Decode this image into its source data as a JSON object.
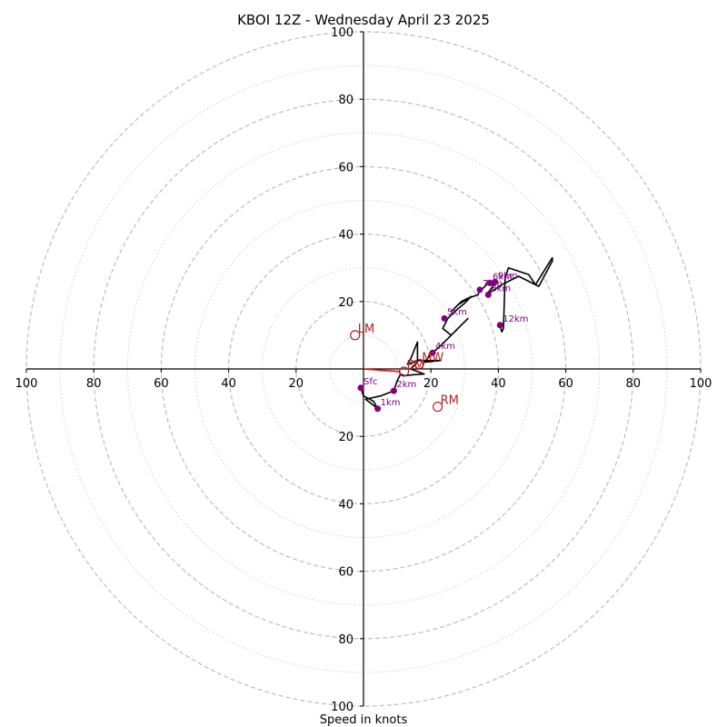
{
  "chart_data": {
    "type": "hodograph",
    "title": "KBOI 12Z - Wednesday April 23 2025",
    "xlabel": "Speed in knots",
    "range": [
      -100,
      100
    ],
    "major_rings": [
      20,
      40,
      60,
      80,
      100
    ],
    "minor_rings": [
      10,
      30,
      50,
      70,
      90
    ],
    "x_tick_labels": [
      {
        "value": -100,
        "label": "100"
      },
      {
        "value": -80,
        "label": "80"
      },
      {
        "value": -60,
        "label": "60"
      },
      {
        "value": -40,
        "label": "40"
      },
      {
        "value": -20,
        "label": "20"
      },
      {
        "value": 20,
        "label": "20"
      },
      {
        "value": 40,
        "label": "40"
      },
      {
        "value": 60,
        "label": "60"
      },
      {
        "value": 80,
        "label": "80"
      },
      {
        "value": 100,
        "label": "100"
      }
    ],
    "y_tick_labels": [
      {
        "value": 100,
        "label": "100"
      },
      {
        "value": 80,
        "label": "80"
      },
      {
        "value": 60,
        "label": "60"
      },
      {
        "value": 40,
        "label": "40"
      },
      {
        "value": 20,
        "label": "20"
      },
      {
        "value": -20,
        "label": "20"
      },
      {
        "value": -40,
        "label": "40"
      },
      {
        "value": -60,
        "label": "60"
      },
      {
        "value": -80,
        "label": "80"
      },
      {
        "value": -100,
        "label": "100"
      }
    ],
    "colors": {
      "hodograph": "#000000",
      "height_markers": "#800080",
      "storm_motion": "#b22222",
      "mean_wind_vector": "#ff0000"
    },
    "hodograph_trace": [
      [
        -0.8,
        -5.6
      ],
      [
        0,
        -8
      ],
      [
        3,
        -9.6
      ],
      [
        4.2,
        -11.8
      ],
      [
        2,
        -10
      ],
      [
        0.6,
        -9
      ],
      [
        5,
        -8
      ],
      [
        9,
        -6.5
      ],
      [
        10,
        -3.5
      ],
      [
        11,
        -1.5
      ],
      [
        12,
        -2
      ],
      [
        15,
        -1.7
      ],
      [
        18,
        -1.5
      ],
      [
        14,
        0
      ],
      [
        16,
        2
      ],
      [
        16,
        8
      ],
      [
        14,
        3
      ],
      [
        13,
        1.4
      ],
      [
        16,
        2.5
      ],
      [
        23,
        2.5
      ],
      [
        18,
        2
      ],
      [
        20.5,
        4.8
      ],
      [
        23,
        7
      ],
      [
        25,
        9
      ],
      [
        31,
        15
      ],
      [
        26,
        10
      ],
      [
        23.5,
        12
      ],
      [
        25,
        15
      ],
      [
        27,
        17
      ],
      [
        30,
        19.5
      ],
      [
        32,
        21.5
      ],
      [
        28,
        19
      ],
      [
        26,
        17
      ],
      [
        29,
        20
      ],
      [
        31,
        21
      ],
      [
        34,
        22
      ],
      [
        34.5,
        24
      ],
      [
        35,
        23.5
      ],
      [
        37,
        25.5
      ],
      [
        38,
        25
      ],
      [
        39.5,
        26
      ],
      [
        36.5,
        22
      ],
      [
        41,
        25
      ],
      [
        46,
        27.5
      ],
      [
        52,
        24.5
      ],
      [
        56,
        32
      ],
      [
        56,
        33
      ],
      [
        51,
        25
      ],
      [
        49,
        28
      ],
      [
        43,
        30
      ],
      [
        42,
        27
      ],
      [
        41.5,
        12
      ],
      [
        41,
        11
      ],
      [
        40.5,
        13
      ]
    ],
    "height_markers": [
      {
        "label": "Sfc",
        "u": -0.8,
        "v": -5.6
      },
      {
        "label": "1km",
        "u": 4.2,
        "v": -11.8
      },
      {
        "label": "2km",
        "u": 9,
        "v": -6.5
      },
      {
        "label": "4km",
        "u": 20.5,
        "v": 4.8
      },
      {
        "label": "5km",
        "u": 24,
        "v": 15
      },
      {
        "label": "6km",
        "u": 37.5,
        "v": 25.5
      },
      {
        "label": "7km",
        "u": 34.5,
        "v": 23.5
      },
      {
        "label": "8km",
        "u": 37,
        "v": 22
      },
      {
        "label": "9km",
        "u": 39,
        "v": 25.8
      },
      {
        "label": "12km",
        "u": 40.5,
        "v": 13
      }
    ],
    "storm_motions": [
      {
        "label": "LM",
        "u": -2.5,
        "v": 10
      },
      {
        "label": "RM",
        "u": 22,
        "v": -11.2
      },
      {
        "label": "EM",
        "u": 12,
        "v": -0.8
      },
      {
        "label": "MW",
        "u": 16.5,
        "v": 1.5
      }
    ],
    "mean_wind_vector": {
      "from": [
        0,
        0
      ],
      "to": [
        11,
        -0.8
      ]
    }
  }
}
